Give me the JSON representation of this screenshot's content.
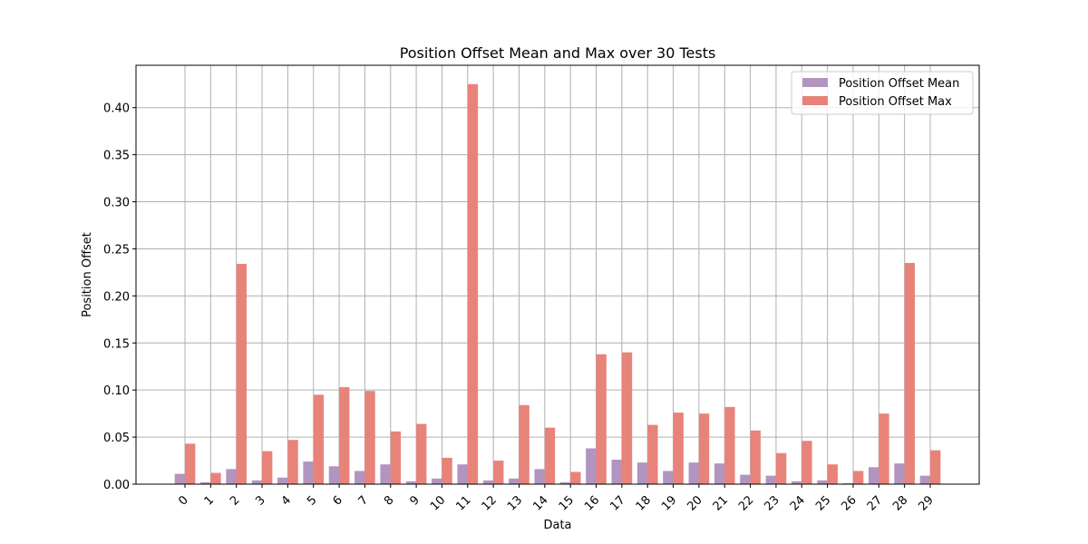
{
  "chart_data": {
    "type": "bar",
    "title": "Position Offset Mean and Max over 30 Tests",
    "xlabel": "Data",
    "ylabel": "Position Offset",
    "categories": [
      "0",
      "1",
      "2",
      "3",
      "4",
      "5",
      "6",
      "7",
      "8",
      "9",
      "10",
      "11",
      "12",
      "13",
      "14",
      "15",
      "16",
      "17",
      "18",
      "19",
      "20",
      "21",
      "22",
      "23",
      "24",
      "25",
      "26",
      "27",
      "28",
      "29"
    ],
    "series": [
      {
        "name": "Position Offset Mean",
        "color": "#b294c0",
        "values": [
          0.011,
          0.002,
          0.016,
          0.004,
          0.007,
          0.024,
          0.019,
          0.014,
          0.021,
          0.003,
          0.006,
          0.021,
          0.004,
          0.006,
          0.016,
          0.002,
          0.038,
          0.026,
          0.023,
          0.014,
          0.023,
          0.022,
          0.01,
          0.009,
          0.003,
          0.004,
          0.001,
          0.018,
          0.022,
          0.009
        ]
      },
      {
        "name": "Position Offset Max",
        "color": "#e8837a",
        "values": [
          0.043,
          0.012,
          0.234,
          0.035,
          0.047,
          0.095,
          0.103,
          0.099,
          0.056,
          0.064,
          0.028,
          0.425,
          0.025,
          0.084,
          0.06,
          0.013,
          0.138,
          0.14,
          0.063,
          0.076,
          0.075,
          0.082,
          0.057,
          0.033,
          0.046,
          0.021,
          0.014,
          0.075,
          0.235,
          0.036
        ]
      }
    ],
    "ylim": [
      0,
      0.445
    ],
    "yticks": [
      "0.00",
      "0.05",
      "0.10",
      "0.15",
      "0.20",
      "0.25",
      "0.30",
      "0.35",
      "0.40"
    ],
    "grid": true,
    "legend_position": "top-right"
  }
}
